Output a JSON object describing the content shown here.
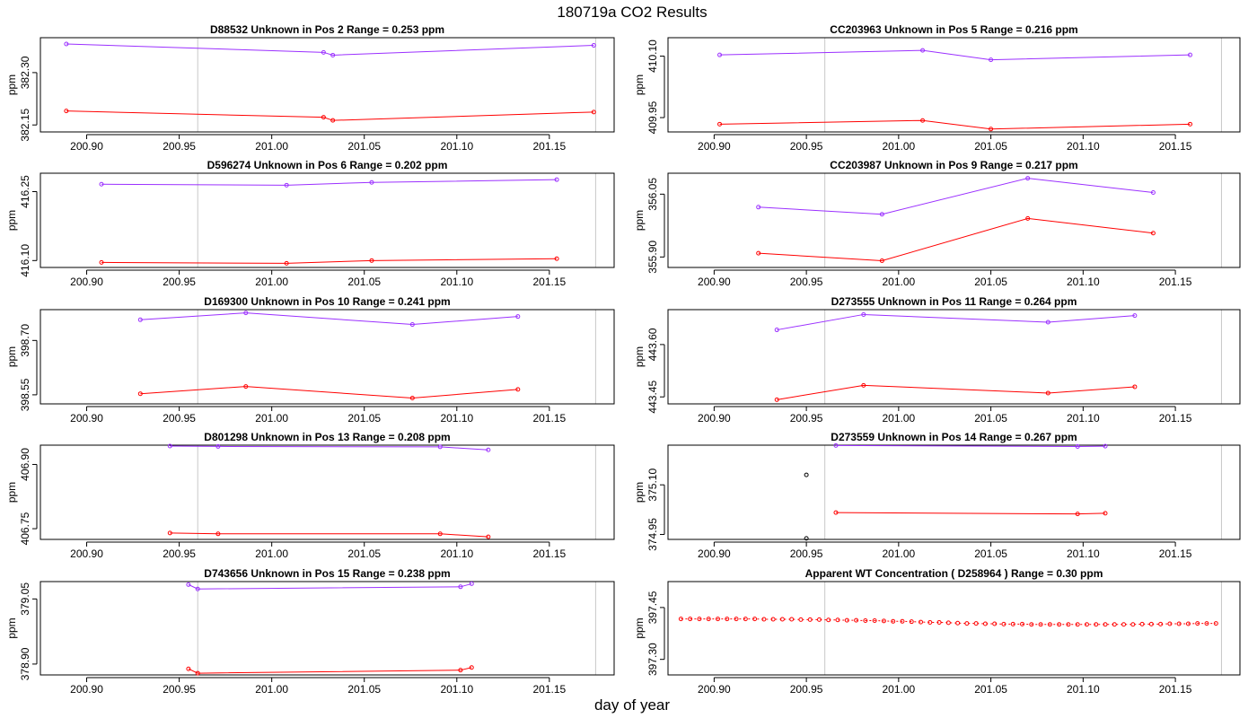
{
  "main_title": "180719a  CO2 Results",
  "xlabel": "day of year",
  "chart_data": [
    {
      "type": "line",
      "title": "D88532    Unknown in Pos 2         Range =  0.253 ppm",
      "ylabel": "ppm",
      "xlim": [
        200.875,
        201.185
      ],
      "ylim": [
        382.13,
        382.4
      ],
      "xticks": [
        200.9,
        200.95,
        201.0,
        201.05,
        201.1,
        201.15
      ],
      "xtick_labels": [
        "200.90",
        "200.95",
        "201.00",
        "201.05",
        "201.10",
        "201.15"
      ],
      "yticks": [
        382.15,
        382.3
      ],
      "ytick_labels": [
        "382.15",
        "382.30"
      ],
      "vlines": [
        200.96,
        201.175
      ],
      "series": [
        {
          "name": "upper",
          "color": "#9b30ff",
          "x": [
            200.889,
            201.028,
            201.033,
            201.174
          ],
          "y": [
            382.382,
            382.358,
            382.35,
            382.378
          ]
        },
        {
          "name": "lower",
          "color": "#ff0000",
          "x": [
            200.889,
            201.028,
            201.033,
            201.174
          ],
          "y": [
            382.19,
            382.172,
            382.163,
            382.187
          ]
        }
      ],
      "points": []
    },
    {
      "type": "line",
      "title": "CC203963    Unknown in Pos 5         Range =  0.216 ppm",
      "ylabel": "ppm",
      "xlim": [
        200.875,
        201.185
      ],
      "ylim": [
        409.915,
        410.145
      ],
      "xticks": [
        200.9,
        200.95,
        201.0,
        201.05,
        201.1,
        201.15
      ],
      "xtick_labels": [
        "200.90",
        "200.95",
        "201.00",
        "201.05",
        "201.10",
        "201.15"
      ],
      "yticks": [
        409.95,
        410.1
      ],
      "ytick_labels": [
        "409.95",
        "410.10"
      ],
      "vlines": [
        200.96,
        201.175
      ],
      "series": [
        {
          "name": "upper",
          "color": "#9b30ff",
          "x": [
            200.903,
            201.013,
            201.05,
            201.158
          ],
          "y": [
            410.103,
            410.114,
            410.091,
            410.103
          ]
        },
        {
          "name": "lower",
          "color": "#ff0000",
          "x": [
            200.903,
            201.013,
            201.05,
            201.158
          ],
          "y": [
            409.934,
            409.943,
            409.922,
            409.934
          ]
        }
      ],
      "points": []
    },
    {
      "type": "line",
      "title": "D596274    Unknown in Pos 6         Range =  0.202 ppm",
      "ylabel": "ppm",
      "xlim": [
        200.875,
        201.185
      ],
      "ylim": [
        416.085,
        416.29
      ],
      "xticks": [
        200.9,
        200.95,
        201.0,
        201.05,
        201.1,
        201.15
      ],
      "xtick_labels": [
        "200.90",
        "200.95",
        "201.00",
        "201.05",
        "201.10",
        "201.15"
      ],
      "yticks": [
        416.1,
        416.25
      ],
      "ytick_labels": [
        "416.10",
        "416.25"
      ],
      "vlines": [
        200.96,
        201.175
      ],
      "series": [
        {
          "name": "upper",
          "color": "#9b30ff",
          "x": [
            200.908,
            201.008,
            201.054,
            201.154
          ],
          "y": [
            416.266,
            416.264,
            416.27,
            416.276
          ]
        },
        {
          "name": "lower",
          "color": "#ff0000",
          "x": [
            200.908,
            201.008,
            201.054,
            201.154
          ],
          "y": [
            416.096,
            416.094,
            416.1,
            416.104
          ]
        }
      ],
      "points": []
    },
    {
      "type": "line",
      "title": "CC203987    Unknown in Pos 9         Range =  0.217 ppm",
      "ylabel": "ppm",
      "xlim": [
        200.875,
        201.185
      ],
      "ylim": [
        355.875,
        356.1
      ],
      "xticks": [
        200.9,
        200.95,
        201.0,
        201.05,
        201.1,
        201.15
      ],
      "xtick_labels": [
        "200.90",
        "200.95",
        "201.00",
        "201.05",
        "201.10",
        "201.15"
      ],
      "yticks": [
        355.9,
        356.05
      ],
      "ytick_labels": [
        "355.90",
        "356.05"
      ],
      "vlines": [
        200.96,
        201.175
      ],
      "series": [
        {
          "name": "upper",
          "color": "#9b30ff",
          "x": [
            200.924,
            200.991,
            201.07,
            201.138
          ],
          "y": [
            356.019,
            356.002,
            356.088,
            356.054
          ]
        },
        {
          "name": "lower",
          "color": "#ff0000",
          "x": [
            200.924,
            200.991,
            201.07,
            201.138
          ],
          "y": [
            355.909,
            355.891,
            355.992,
            355.957
          ]
        }
      ],
      "points": []
    },
    {
      "type": "line",
      "title": "D169300    Unknown in Pos 10         Range =  0.241 ppm",
      "ylabel": "ppm",
      "xlim": [
        200.875,
        201.185
      ],
      "ylim": [
        398.525,
        398.785
      ],
      "xticks": [
        200.9,
        200.95,
        201.0,
        201.05,
        201.1,
        201.15
      ],
      "xtick_labels": [
        "200.90",
        "200.95",
        "201.00",
        "201.05",
        "201.10",
        "201.15"
      ],
      "yticks": [
        398.55,
        398.7
      ],
      "ytick_labels": [
        "398.55",
        "398.70"
      ],
      "vlines": [
        200.96,
        201.175
      ],
      "series": [
        {
          "name": "upper",
          "color": "#9b30ff",
          "x": [
            200.929,
            200.986,
            201.076,
            201.133
          ],
          "y": [
            398.757,
            398.776,
            398.744,
            398.766
          ]
        },
        {
          "name": "lower",
          "color": "#ff0000",
          "x": [
            200.929,
            200.986,
            201.076,
            201.133
          ],
          "y": [
            398.553,
            398.573,
            398.541,
            398.565
          ]
        }
      ],
      "points": []
    },
    {
      "type": "line",
      "title": "D273555    Unknown in Pos 11         Range =  0.264 ppm",
      "ylabel": "ppm",
      "xlim": [
        200.875,
        201.185
      ],
      "ylim": [
        443.43,
        443.7
      ],
      "xticks": [
        200.9,
        200.95,
        201.0,
        201.05,
        201.1,
        201.15
      ],
      "xtick_labels": [
        "200.90",
        "200.95",
        "201.00",
        "201.05",
        "201.10",
        "201.15"
      ],
      "yticks": [
        443.45,
        443.6
      ],
      "ytick_labels": [
        "443.45",
        "443.60"
      ],
      "vlines": [
        200.96,
        201.175
      ],
      "series": [
        {
          "name": "upper",
          "color": "#9b30ff",
          "x": [
            200.934,
            200.981,
            201.081,
            201.128
          ],
          "y": [
            443.642,
            443.686,
            443.664,
            443.683
          ]
        },
        {
          "name": "lower",
          "color": "#ff0000",
          "x": [
            200.934,
            200.981,
            201.081,
            201.128
          ],
          "y": [
            443.442,
            443.483,
            443.461,
            443.479
          ]
        }
      ],
      "points": []
    },
    {
      "type": "line",
      "title": "D801298    Unknown in Pos 13         Range =  0.208 ppm",
      "ylabel": "ppm",
      "xlim": [
        200.875,
        201.185
      ],
      "ylim": [
        406.725,
        406.945
      ],
      "xticks": [
        200.9,
        200.95,
        201.0,
        201.05,
        201.1,
        201.15
      ],
      "xtick_labels": [
        "200.90",
        "200.95",
        "201.00",
        "201.05",
        "201.10",
        "201.15"
      ],
      "yticks": [
        406.75,
        406.9
      ],
      "ytick_labels": [
        "406.75",
        "406.90"
      ],
      "vlines": [
        200.96,
        201.175
      ],
      "series": [
        {
          "name": "upper",
          "color": "#9b30ff",
          "x": [
            200.945,
            200.971,
            201.091,
            201.117
          ],
          "y": [
            406.943,
            406.942,
            406.941,
            406.934
          ]
        },
        {
          "name": "lower",
          "color": "#ff0000",
          "x": [
            200.945,
            200.971,
            201.091,
            201.117
          ],
          "y": [
            406.74,
            406.738,
            406.738,
            406.731
          ]
        }
      ],
      "points": []
    },
    {
      "type": "line",
      "title": "D273559    Unknown in Pos 14         Range =  0.267 ppm",
      "ylabel": "ppm",
      "xlim": [
        200.875,
        201.185
      ],
      "ylim": [
        374.935,
        375.22
      ],
      "xticks": [
        200.9,
        200.95,
        201.0,
        201.05,
        201.1,
        201.15
      ],
      "xtick_labels": [
        "200.90",
        "200.95",
        "201.00",
        "201.05",
        "201.10",
        "201.15"
      ],
      "yticks": [
        374.95,
        375.1
      ],
      "ytick_labels": [
        "374.95",
        "375.10"
      ],
      "vlines": [
        200.96,
        201.175
      ],
      "series": [
        {
          "name": "upper",
          "color": "#9b30ff",
          "x": [
            200.966,
            201.097,
            201.112
          ],
          "y": [
            375.219,
            375.216,
            375.217
          ]
        },
        {
          "name": "lower",
          "color": "#ff0000",
          "x": [
            200.966,
            201.097,
            201.112
          ],
          "y": [
            375.016,
            375.012,
            375.014
          ]
        }
      ],
      "points": [
        {
          "x": 200.95,
          "y": 375.13,
          "color": "#000000"
        },
        {
          "x": 200.95,
          "y": 374.938,
          "color": "#000000"
        }
      ]
    },
    {
      "type": "line",
      "title": "D743656    Unknown in Pos 15         Range =  0.238 ppm",
      "ylabel": "ppm",
      "xlim": [
        200.875,
        201.185
      ],
      "ylim": [
        378.875,
        379.09
      ],
      "xticks": [
        200.9,
        200.95,
        201.0,
        201.05,
        201.1,
        201.15
      ],
      "xtick_labels": [
        "200.90",
        "200.95",
        "201.00",
        "201.05",
        "201.10",
        "201.15"
      ],
      "yticks": [
        378.9,
        379.05
      ],
      "ytick_labels": [
        "378.90",
        "379.05"
      ],
      "vlines": [
        200.96,
        201.175
      ],
      "series": [
        {
          "name": "upper",
          "color": "#9b30ff",
          "x": [
            200.955,
            200.96,
            201.102,
            201.108
          ],
          "y": [
            379.083,
            379.073,
            379.078,
            379.085
          ]
        },
        {
          "name": "lower",
          "color": "#ff0000",
          "x": [
            200.955,
            200.96,
            201.102,
            201.108
          ],
          "y": [
            378.889,
            378.879,
            378.886,
            378.892
          ]
        }
      ],
      "points": []
    },
    {
      "type": "scatter",
      "title": "Apparent WT Concentration ( D258964 )          Range = 0.30 ppm",
      "ylabel": "ppm",
      "xlim": [
        200.875,
        201.185
      ],
      "ylim": [
        397.255,
        397.525
      ],
      "xticks": [
        200.9,
        200.95,
        201.0,
        201.05,
        201.1,
        201.15
      ],
      "xtick_labels": [
        "200.90",
        "200.95",
        "201.00",
        "201.05",
        "201.10",
        "201.15"
      ],
      "yticks": [
        397.3,
        397.45
      ],
      "ytick_labels": [
        "397.30",
        "397.45"
      ],
      "vlines": [
        200.96,
        201.175
      ],
      "series": [
        {
          "name": "WT",
          "color": "#ff0000",
          "dashed": true,
          "x": [
            200.882,
            200.887,
            200.892,
            200.897,
            200.902,
            200.907,
            200.912,
            200.917,
            200.922,
            200.927,
            200.932,
            200.937,
            200.942,
            200.947,
            200.952,
            200.957,
            200.962,
            200.967,
            200.972,
            200.977,
            200.982,
            200.987,
            200.992,
            200.997,
            201.002,
            201.007,
            201.012,
            201.017,
            201.022,
            201.027,
            201.032,
            201.037,
            201.042,
            201.047,
            201.052,
            201.057,
            201.062,
            201.067,
            201.072,
            201.077,
            201.082,
            201.087,
            201.092,
            201.097,
            201.102,
            201.107,
            201.112,
            201.117,
            201.122,
            201.127,
            201.132,
            201.137,
            201.142,
            201.147,
            201.152,
            201.157,
            201.162,
            201.167,
            201.172
          ],
          "y": [
            397.417,
            397.417,
            397.417,
            397.417,
            397.417,
            397.417,
            397.417,
            397.417,
            397.417,
            397.416,
            397.416,
            397.416,
            397.416,
            397.415,
            397.415,
            397.415,
            397.414,
            397.414,
            397.413,
            397.413,
            397.412,
            397.412,
            397.411,
            397.41,
            397.41,
            397.409,
            397.408,
            397.407,
            397.407,
            397.406,
            397.405,
            397.404,
            397.404,
            397.403,
            397.403,
            397.402,
            397.402,
            397.402,
            397.401,
            397.401,
            397.401,
            397.401,
            397.401,
            397.401,
            397.401,
            397.401,
            397.401,
            397.401,
            397.401,
            397.401,
            397.402,
            397.402,
            397.402,
            397.403,
            397.403,
            397.403,
            397.404,
            397.404,
            397.404
          ]
        }
      ],
      "points": []
    }
  ]
}
